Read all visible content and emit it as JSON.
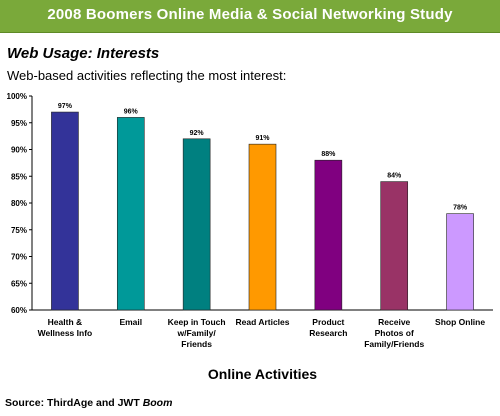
{
  "banner": {
    "title": "2008 Boomers Online Media & Social Networking Study",
    "color": "#7aa93a"
  },
  "heading": {
    "section": "Web Usage: Interests",
    "subtitle": "Web-based activities reflecting the most interest:"
  },
  "chart_data": {
    "type": "bar",
    "categories": [
      [
        "Health &",
        "Wellness Info"
      ],
      [
        "Email"
      ],
      [
        "Keep in Touch",
        "w/Family/",
        "Friends"
      ],
      [
        "Read Articles"
      ],
      [
        "Product",
        "Research"
      ],
      [
        "Receive",
        "Photos of",
        "Family/Friends"
      ],
      [
        "Shop Online"
      ]
    ],
    "values": [
      97,
      96,
      92,
      91,
      88,
      84,
      78
    ],
    "data_labels": [
      "97%",
      "96%",
      "92%",
      "91%",
      "88%",
      "84%",
      "78%"
    ],
    "colors": [
      "#333399",
      "#009999",
      "#008080",
      "#ff9900",
      "#800080",
      "#993366",
      "#cc99ff"
    ],
    "ylim": [
      60,
      100
    ],
    "yticks": [
      "60%",
      "65%",
      "70%",
      "75%",
      "80%",
      "85%",
      "90%",
      "95%",
      "100%"
    ],
    "xlabel": "Online Activities",
    "ylabel": "",
    "grid": false,
    "legend": "none"
  },
  "source": {
    "prefix": "Source: ThirdAge and JWT ",
    "emphasis": "Boom"
  }
}
